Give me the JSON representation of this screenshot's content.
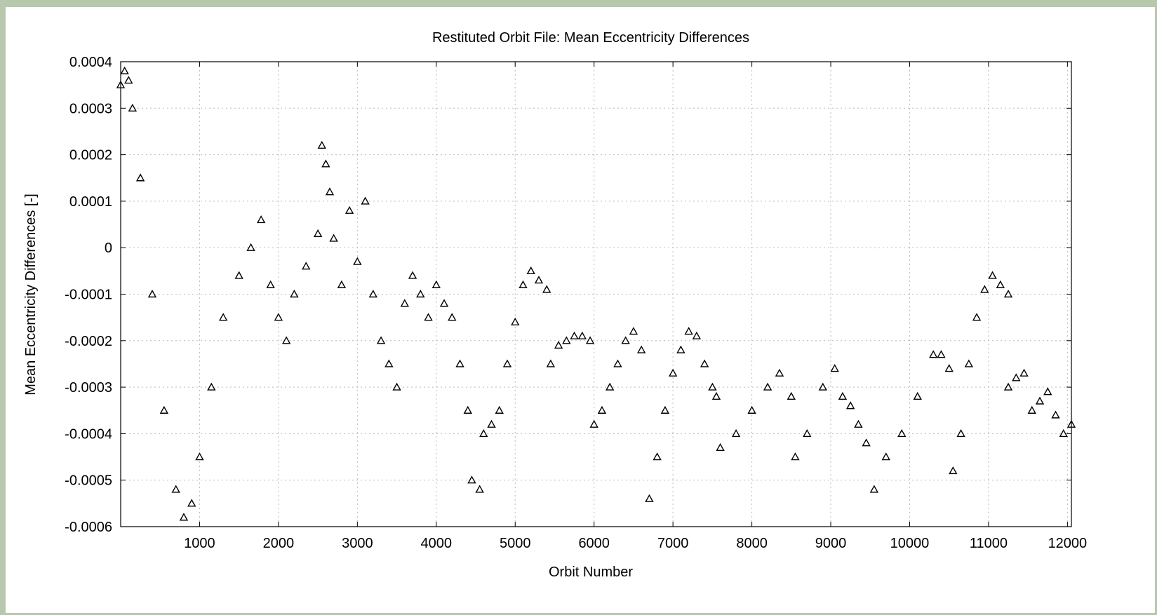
{
  "colors": {
    "frame": "#b7c8ad",
    "background": "#ffffff",
    "marker": "#000000",
    "grid": "#bbbbbb"
  },
  "chart_data": {
    "type": "scatter",
    "title": "Restituted Orbit File: Mean Eccentricity Differences",
    "xlabel": "Orbit Number",
    "ylabel": "Mean Eccentricity Differences [-]",
    "xlim": [
      0,
      12050
    ],
    "ylim": [
      -0.0006,
      0.0004
    ],
    "grid": true,
    "legend": "none",
    "marker": "triangle-open",
    "x_ticks": [
      1000,
      2000,
      3000,
      4000,
      5000,
      6000,
      7000,
      8000,
      9000,
      10000,
      11000,
      12000
    ],
    "x_tick_labels": [
      "1000",
      "2000",
      "3000",
      "4000",
      "5000",
      "6000",
      "7000",
      "8000",
      "9000",
      "10000",
      "11000",
      "12000"
    ],
    "y_ticks": [
      0.0004,
      0.0003,
      0.0002,
      0.0001,
      0,
      -0.0001,
      -0.0002,
      -0.0003,
      -0.0004,
      -0.0005,
      -0.0006
    ],
    "y_tick_labels": [
      "0.0004",
      "0.0003",
      "0.0002",
      "0.0001",
      "0",
      "-0.0001",
      "-0.0002",
      "-0.0003",
      "-0.0004",
      "-0.0005",
      "-0.0006"
    ],
    "series": [
      {
        "x": [
          0,
          50,
          100,
          150,
          250,
          400,
          550,
          700,
          800,
          900,
          1000,
          1150,
          1300,
          1500,
          1650,
          1780,
          1900,
          2000,
          2100,
          2200,
          2350,
          2500
        ],
        "y": [
          0.00035,
          0.00038,
          0.00036,
          0.0003,
          0.00015,
          -0.0001,
          -0.00035,
          -0.00052,
          -0.00058,
          -0.00055,
          -0.00045,
          -0.0003,
          -0.00015,
          -6e-05,
          0.0,
          6e-05,
          -8e-05,
          -0.00015,
          -0.0002,
          -0.0001,
          -4e-05,
          3e-05
        ]
      },
      {
        "x": [
          2550,
          2600,
          2650
        ],
        "y": [
          0.00022,
          0.00018,
          0.00012
        ]
      },
      {
        "x": [
          2700,
          2800,
          2900,
          3000,
          3100,
          3200,
          3300,
          3400,
          3500
        ],
        "y": [
          2e-05,
          -8e-05,
          8e-05,
          -3e-05,
          0.0001,
          -0.0001,
          -0.0002,
          -0.00025,
          -0.0003
        ]
      },
      {
        "x": [
          3600,
          3700,
          3800,
          3900,
          4000,
          4100,
          4200,
          4300,
          4400
        ],
        "y": [
          -0.00012,
          -6e-05,
          -0.0001,
          -0.00015,
          -8e-05,
          -0.00012,
          -0.00015,
          -0.00025,
          -0.00035
        ]
      },
      {
        "x": [
          4450,
          4550,
          4600,
          4700,
          4800,
          4900,
          5000,
          5100,
          5200,
          5300,
          5400
        ],
        "y": [
          -0.0005,
          -0.00052,
          -0.0004,
          -0.00038,
          -0.00035,
          -0.00025,
          -0.00016,
          -8e-05,
          -5e-05,
          -7e-05,
          -9e-05
        ]
      },
      {
        "x": [
          5450,
          5550,
          5650,
          5750,
          5850,
          5950
        ],
        "y": [
          -0.00025,
          -0.00021,
          -0.0002,
          -0.00019,
          -0.00019,
          -0.0002
        ]
      },
      {
        "x": [
          6000,
          6100,
          6200,
          6300,
          6400,
          6500,
          6600
        ],
        "y": [
          -0.00038,
          -0.00035,
          -0.0003,
          -0.00025,
          -0.0002,
          -0.00018,
          -0.00022
        ]
      },
      {
        "x": [
          6700,
          6800,
          6900,
          7000,
          7100,
          7200,
          7300,
          7400,
          7500,
          7550
        ],
        "y": [
          -0.00054,
          -0.00045,
          -0.00035,
          -0.00027,
          -0.00022,
          -0.00018,
          -0.00019,
          -0.00025,
          -0.0003,
          -0.00032
        ]
      },
      {
        "x": [
          7600,
          7800,
          8000,
          8200,
          8350,
          8500
        ],
        "y": [
          -0.00043,
          -0.0004,
          -0.00035,
          -0.0003,
          -0.00027,
          -0.00032
        ]
      },
      {
        "x": [
          8550,
          8700,
          8900,
          9050,
          9150,
          9250,
          9350,
          9450
        ],
        "y": [
          -0.00045,
          -0.0004,
          -0.0003,
          -0.00026,
          -0.00032,
          -0.00034,
          -0.00038,
          -0.00042
        ]
      },
      {
        "x": [
          9550,
          9700,
          9900,
          10100,
          10300,
          10400,
          10500
        ],
        "y": [
          -0.00052,
          -0.00045,
          -0.0004,
          -0.00032,
          -0.00023,
          -0.00023,
          -0.00026
        ]
      },
      {
        "x": [
          10550,
          10650,
          10750,
          10850,
          10950,
          11050,
          11150,
          11250
        ],
        "y": [
          -0.00048,
          -0.0004,
          -0.00025,
          -0.00015,
          -9e-05,
          -6e-05,
          -8e-05,
          -0.0001
        ]
      },
      {
        "x": [
          11250,
          11350,
          11450,
          11550,
          11650,
          11750,
          11850,
          11950,
          12050
        ],
        "y": [
          -0.0003,
          -0.00028,
          -0.00027,
          -0.00035,
          -0.00033,
          -0.00031,
          -0.00036,
          -0.0004,
          -0.00038
        ]
      }
    ]
  }
}
